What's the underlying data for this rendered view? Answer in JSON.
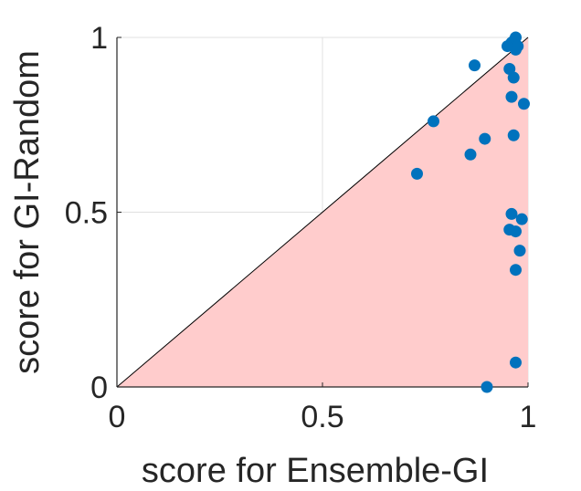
{
  "chart_data": {
    "type": "scatter",
    "title": "",
    "xlabel": "score for Ensemble-GI",
    "ylabel": "score for GI-Random",
    "xlim": [
      0,
      1
    ],
    "ylim": [
      0,
      1
    ],
    "xticks": [
      "0",
      "0.5",
      "1"
    ],
    "yticks": [
      "0",
      "0.5",
      "1"
    ],
    "grid": true,
    "colors": {
      "points": "#0072BD",
      "below_diagonal_fill": "#FFCCCC",
      "diagonal": "#000000",
      "grid": "#E0E0E0"
    },
    "points": [
      {
        "x": 0.97,
        "y": 1.0
      },
      {
        "x": 0.965,
        "y": 0.99
      },
      {
        "x": 0.96,
        "y": 0.985
      },
      {
        "x": 0.95,
        "y": 0.975
      },
      {
        "x": 0.975,
        "y": 0.975
      },
      {
        "x": 0.97,
        "y": 0.965
      },
      {
        "x": 0.87,
        "y": 0.92
      },
      {
        "x": 0.955,
        "y": 0.91
      },
      {
        "x": 0.965,
        "y": 0.885
      },
      {
        "x": 0.96,
        "y": 0.83
      },
      {
        "x": 0.99,
        "y": 0.81
      },
      {
        "x": 0.77,
        "y": 0.76
      },
      {
        "x": 0.965,
        "y": 0.72
      },
      {
        "x": 0.895,
        "y": 0.71
      },
      {
        "x": 0.86,
        "y": 0.665
      },
      {
        "x": 0.73,
        "y": 0.61
      },
      {
        "x": 0.96,
        "y": 0.495
      },
      {
        "x": 0.985,
        "y": 0.48
      },
      {
        "x": 0.955,
        "y": 0.45
      },
      {
        "x": 0.97,
        "y": 0.445
      },
      {
        "x": 0.98,
        "y": 0.39
      },
      {
        "x": 0.97,
        "y": 0.335
      },
      {
        "x": 0.97,
        "y": 0.07
      },
      {
        "x": 0.9,
        "y": 0.0
      }
    ]
  }
}
